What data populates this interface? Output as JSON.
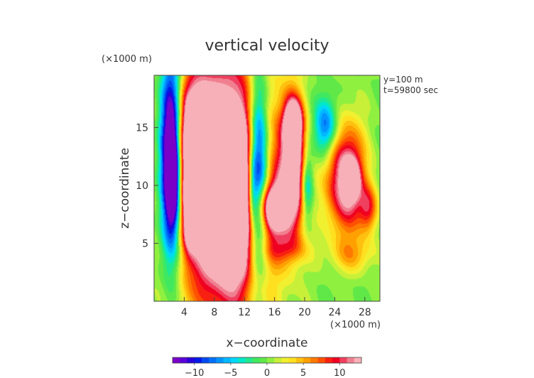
{
  "chart_data": {
    "type": "heatmap",
    "title": "vertical velocity",
    "xlabel": "x−coordinate",
    "ylabel": "z−coordinate",
    "x_unit": "(×1000 m)",
    "y_unit": "(×1000 m)",
    "annotations": [
      "y=100 m",
      "t=59800 sec"
    ],
    "xlim": [
      0,
      30
    ],
    "ylim": [
      0,
      19.5
    ],
    "x_ticks": [
      4,
      8,
      12,
      16,
      20,
      24,
      28
    ],
    "y_ticks": [
      5,
      10,
      15
    ],
    "colorbar": {
      "range": [
        -13,
        13
      ],
      "ticks": [
        -10,
        -5,
        0,
        5,
        10
      ],
      "tick_labels": [
        "−10",
        "−5",
        "0",
        "5",
        "10"
      ],
      "colors": [
        "#7a00c8",
        "#5a00d8",
        "#2800d8",
        "#0018e8",
        "#0048f0",
        "#0070f8",
        "#0094ff",
        "#00b8ff",
        "#00d8f8",
        "#00e8c8",
        "#20e890",
        "#40e860",
        "#60e848",
        "#90f040",
        "#c8f038",
        "#f0f030",
        "#ffe020",
        "#ffc010",
        "#ffa000",
        "#ff7800",
        "#ff5000",
        "#f82010",
        "#f00020",
        "#f04060",
        "#f08090",
        "#f8b0b8"
      ]
    },
    "features": [
      {
        "x": 9.5,
        "z": 10,
        "sx": 6.0,
        "sz": 10.0,
        "value": 25
      },
      {
        "x": 5.5,
        "z": 14,
        "sx": 2.2,
        "sz": 4.5,
        "value": 15
      },
      {
        "x": 10.5,
        "z": 9,
        "sx": 1.6,
        "sz": 5.0,
        "value": 14
      },
      {
        "x": 4.7,
        "z": 8,
        "sx": 0.9,
        "sz": 3.0,
        "value": 12
      },
      {
        "x": 2.3,
        "z": 12,
        "sx": 1.4,
        "sz": 8.0,
        "value": -24
      },
      {
        "x": 2.5,
        "z": 10.5,
        "sx": 0.7,
        "sz": 3.5,
        "value": -8
      },
      {
        "x": 13.8,
        "z": 11,
        "sx": 1.4,
        "sz": 8.0,
        "value": -22
      },
      {
        "x": 13.0,
        "z": 9.5,
        "sx": 0.7,
        "sz": 3.0,
        "value": -6
      },
      {
        "x": 18.5,
        "z": 11.5,
        "sx": 1.7,
        "sz": 5.5,
        "value": 16
      },
      {
        "x": 18.5,
        "z": 15.5,
        "sx": 1.1,
        "sz": 1.8,
        "value": 14
      },
      {
        "x": 15.8,
        "z": 8,
        "sx": 2.0,
        "sz": 2.0,
        "value": 14
      },
      {
        "x": 20.3,
        "z": 10,
        "sx": 0.8,
        "sz": 3.0,
        "value": -8
      },
      {
        "x": 22.8,
        "z": 15,
        "sx": 1.5,
        "sz": 2.5,
        "value": -9
      },
      {
        "x": 25.5,
        "z": 10.5,
        "sx": 2.5,
        "sz": 4.5,
        "value": 15
      },
      {
        "x": 26.3,
        "z": 10.5,
        "sx": 0.9,
        "sz": 1.5,
        "value": 10
      },
      {
        "x": 28.5,
        "z": 8,
        "sx": 1.2,
        "sz": 2.0,
        "value": 8
      },
      {
        "x": 7.5,
        "z": 5.5,
        "sx": 3.0,
        "sz": 1.0,
        "value": 4
      },
      {
        "x": 17.5,
        "z": 4.5,
        "sx": 3.0,
        "sz": 1.2,
        "value": 4
      },
      {
        "x": 26.5,
        "z": 4,
        "sx": 3.0,
        "sz": 1.5,
        "value": 4
      }
    ]
  }
}
